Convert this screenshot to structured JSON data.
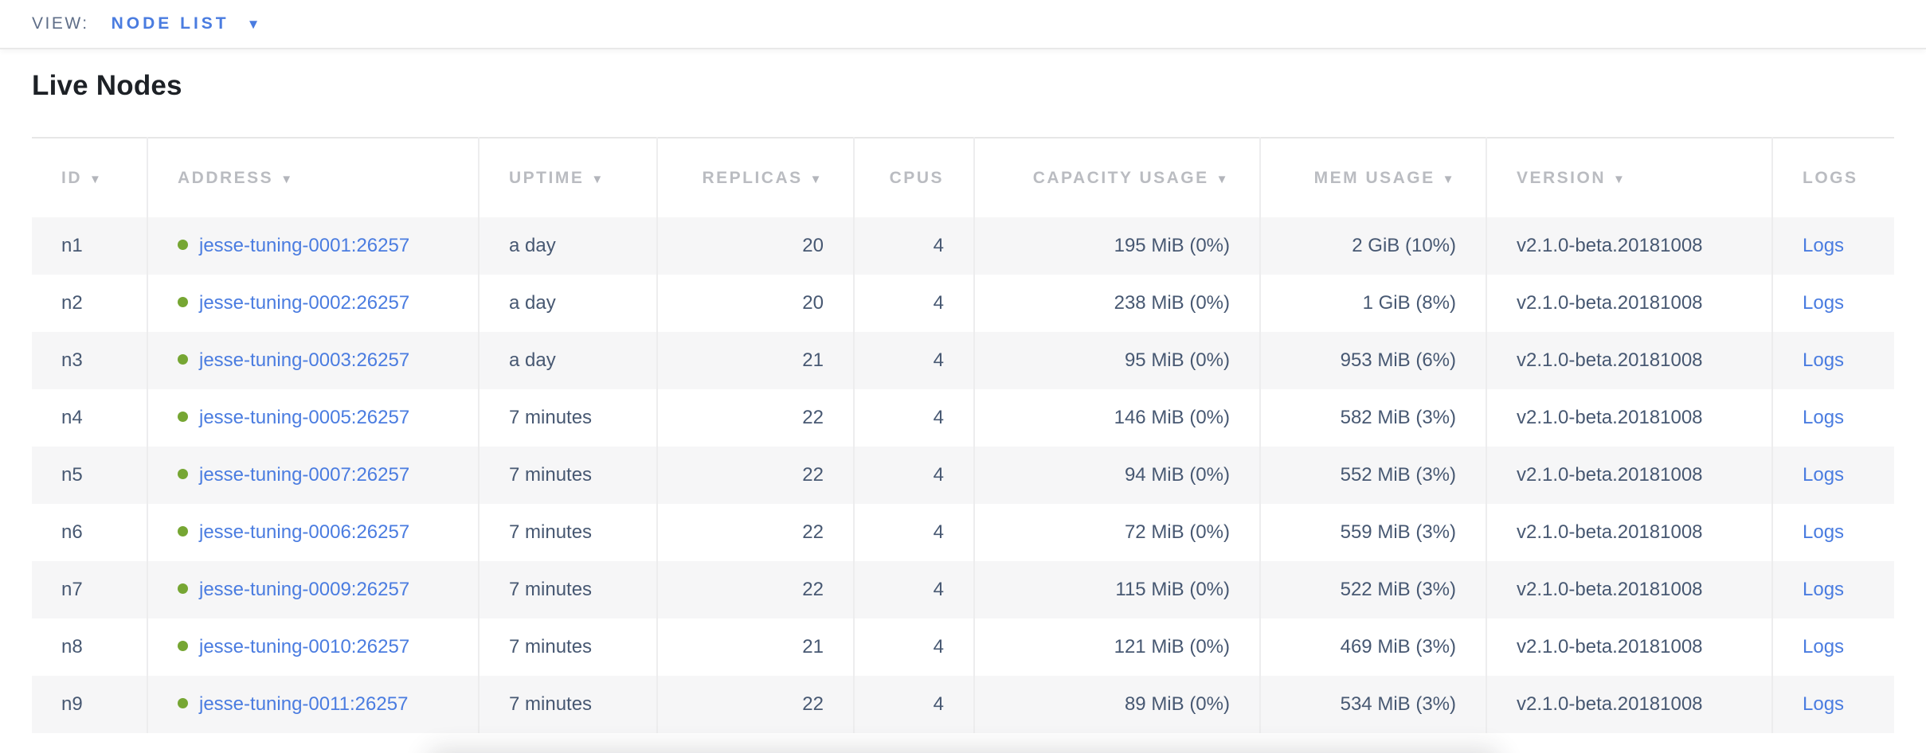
{
  "view_bar": {
    "label": "VIEW:",
    "selected": "NODE LIST",
    "caret_icon": "caret-down-icon"
  },
  "page": {
    "title": "Live Nodes"
  },
  "colors": {
    "accent_blue": "#4a7ce0",
    "healthy_green": "#76a633",
    "header_gray": "#babcc1",
    "cell_text": "#475872",
    "odd_row_bg": "#f6f6f7"
  },
  "table": {
    "columns": [
      {
        "key": "id",
        "label": "ID",
        "sortable": true,
        "align": "left"
      },
      {
        "key": "address",
        "label": "ADDRESS",
        "sortable": true,
        "align": "left"
      },
      {
        "key": "uptime",
        "label": "UPTIME",
        "sortable": true,
        "align": "left"
      },
      {
        "key": "replicas",
        "label": "REPLICAS",
        "sortable": true,
        "align": "right"
      },
      {
        "key": "cpus",
        "label": "CPUS",
        "sortable": false,
        "align": "right"
      },
      {
        "key": "capacity",
        "label": "CAPACITY USAGE",
        "sortable": true,
        "align": "right"
      },
      {
        "key": "mem",
        "label": "MEM USAGE",
        "sortable": true,
        "align": "right"
      },
      {
        "key": "version",
        "label": "VERSION",
        "sortable": true,
        "align": "left"
      },
      {
        "key": "logs",
        "label": "LOGS",
        "sortable": false,
        "align": "left"
      }
    ],
    "rows": [
      {
        "id": "n1",
        "address": "jesse-tuning-0001:26257",
        "uptime": "a day",
        "replicas": "20",
        "cpus": "4",
        "capacity": "195 MiB (0%)",
        "mem": "2 GiB (10%)",
        "version": "v2.1.0-beta.20181008",
        "logs": "Logs"
      },
      {
        "id": "n2",
        "address": "jesse-tuning-0002:26257",
        "uptime": "a day",
        "replicas": "20",
        "cpus": "4",
        "capacity": "238 MiB (0%)",
        "mem": "1 GiB (8%)",
        "version": "v2.1.0-beta.20181008",
        "logs": "Logs"
      },
      {
        "id": "n3",
        "address": "jesse-tuning-0003:26257",
        "uptime": "a day",
        "replicas": "21",
        "cpus": "4",
        "capacity": "95 MiB (0%)",
        "mem": "953 MiB (6%)",
        "version": "v2.1.0-beta.20181008",
        "logs": "Logs"
      },
      {
        "id": "n4",
        "address": "jesse-tuning-0005:26257",
        "uptime": "7 minutes",
        "replicas": "22",
        "cpus": "4",
        "capacity": "146 MiB (0%)",
        "mem": "582 MiB (3%)",
        "version": "v2.1.0-beta.20181008",
        "logs": "Logs"
      },
      {
        "id": "n5",
        "address": "jesse-tuning-0007:26257",
        "uptime": "7 minutes",
        "replicas": "22",
        "cpus": "4",
        "capacity": "94 MiB (0%)",
        "mem": "552 MiB (3%)",
        "version": "v2.1.0-beta.20181008",
        "logs": "Logs"
      },
      {
        "id": "n6",
        "address": "jesse-tuning-0006:26257",
        "uptime": "7 minutes",
        "replicas": "22",
        "cpus": "4",
        "capacity": "72 MiB (0%)",
        "mem": "559 MiB (3%)",
        "version": "v2.1.0-beta.20181008",
        "logs": "Logs"
      },
      {
        "id": "n7",
        "address": "jesse-tuning-0009:26257",
        "uptime": "7 minutes",
        "replicas": "22",
        "cpus": "4",
        "capacity": "115 MiB (0%)",
        "mem": "522 MiB (3%)",
        "version": "v2.1.0-beta.20181008",
        "logs": "Logs"
      },
      {
        "id": "n8",
        "address": "jesse-tuning-0010:26257",
        "uptime": "7 minutes",
        "replicas": "21",
        "cpus": "4",
        "capacity": "121 MiB (0%)",
        "mem": "469 MiB (3%)",
        "version": "v2.1.0-beta.20181008",
        "logs": "Logs"
      },
      {
        "id": "n9",
        "address": "jesse-tuning-0011:26257",
        "uptime": "7 minutes",
        "replicas": "22",
        "cpus": "4",
        "capacity": "89 MiB (0%)",
        "mem": "534 MiB (3%)",
        "version": "v2.1.0-beta.20181008",
        "logs": "Logs"
      }
    ],
    "sort_arrow_glyph": "▼"
  }
}
